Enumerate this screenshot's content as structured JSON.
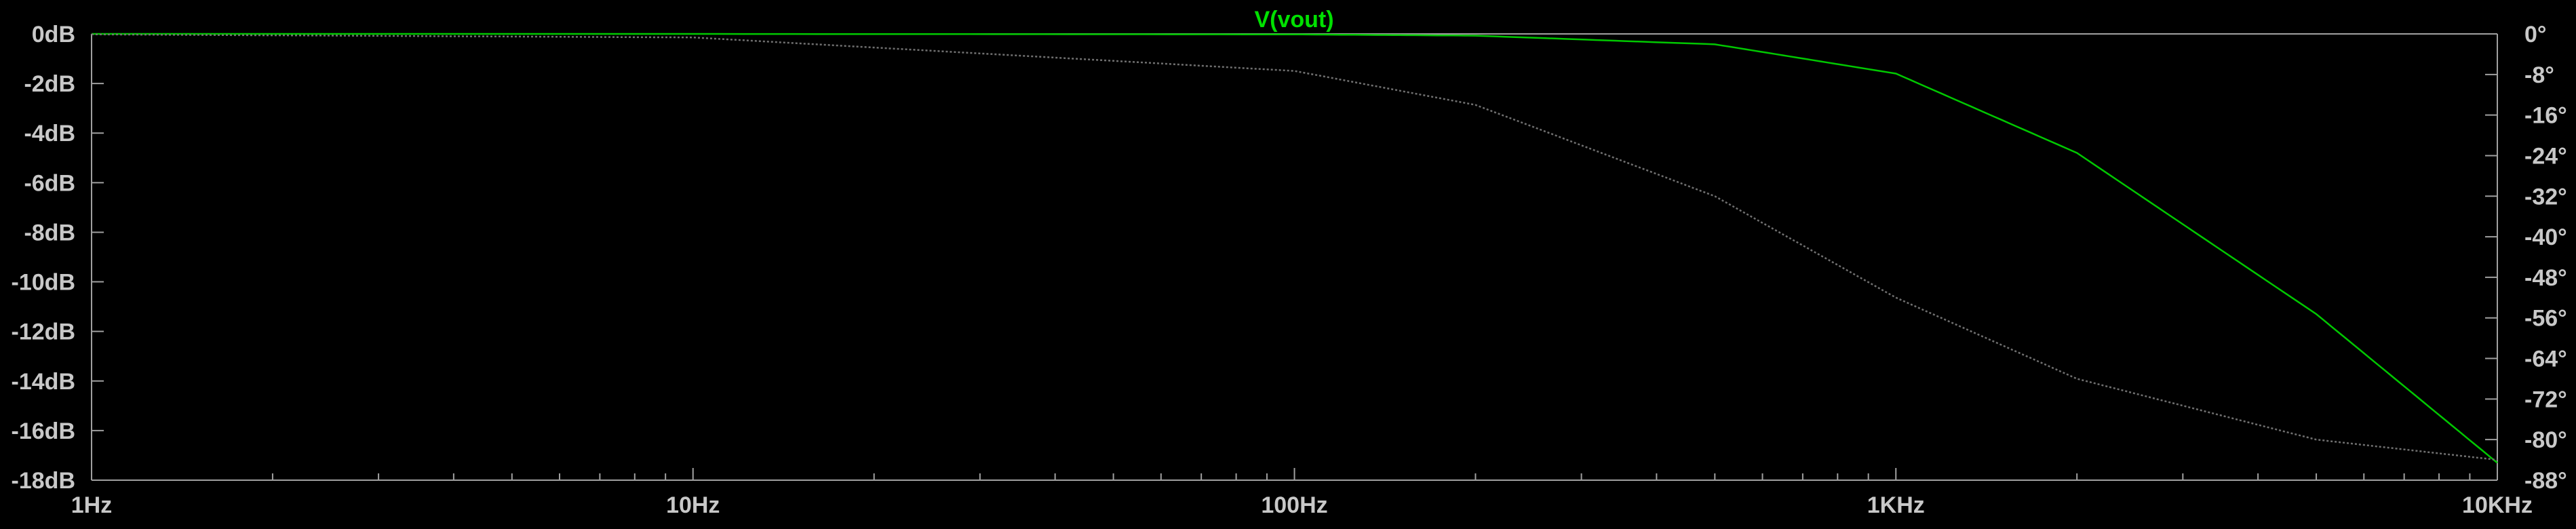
{
  "chart_data": {
    "type": "line",
    "title": "V(vout)",
    "x_scale": "log",
    "x_range_hz": [
      1,
      10000
    ],
    "x_ticks": [
      {
        "value": 1,
        "label": "1Hz"
      },
      {
        "value": 10,
        "label": "10Hz"
      },
      {
        "value": 100,
        "label": "100Hz"
      },
      {
        "value": 1000,
        "label": "1KHz"
      },
      {
        "value": 10000,
        "label": "10KHz"
      }
    ],
    "y_left_range_db": [
      -18,
      0
    ],
    "y_left_ticks": [
      {
        "value": 0,
        "label": "0dB"
      },
      {
        "value": -2,
        "label": "-2dB"
      },
      {
        "value": -4,
        "label": "-4dB"
      },
      {
        "value": -6,
        "label": "-6dB"
      },
      {
        "value": -8,
        "label": "-8dB"
      },
      {
        "value": -10,
        "label": "-10dB"
      },
      {
        "value": -12,
        "label": "-12dB"
      },
      {
        "value": -14,
        "label": "-14dB"
      },
      {
        "value": -16,
        "label": "-16dB"
      },
      {
        "value": -18,
        "label": "-18dB"
      }
    ],
    "y_right_range_deg": [
      -88,
      0
    ],
    "y_right_ticks": [
      {
        "value": 0,
        "label": "0°"
      },
      {
        "value": -8,
        "label": "-8°"
      },
      {
        "value": -16,
        "label": "-16°"
      },
      {
        "value": -24,
        "label": "-24°"
      },
      {
        "value": -32,
        "label": "-32°"
      },
      {
        "value": -40,
        "label": "-40°"
      },
      {
        "value": -48,
        "label": "-48°"
      },
      {
        "value": -56,
        "label": "-56°"
      },
      {
        "value": -64,
        "label": "-64°"
      },
      {
        "value": -72,
        "label": "-72°"
      },
      {
        "value": -80,
        "label": "-80°"
      },
      {
        "value": -88,
        "label": "-88°"
      }
    ],
    "grid": false,
    "series": [
      {
        "kind": "magnitude",
        "axis": "left",
        "color": "#00c800",
        "dash": "none",
        "x": [
          1,
          10,
          100,
          200,
          500,
          1000,
          2000,
          5000,
          10000
        ],
        "y": [
          0,
          0,
          -0.02,
          -0.07,
          -0.42,
          -1.6,
          -4.8,
          -11.3,
          -17.3
        ]
      },
      {
        "kind": "phase",
        "axis": "right",
        "color": "#707070",
        "dash": "dotted",
        "x": [
          1,
          10,
          100,
          200,
          500,
          1000,
          2000,
          5000,
          10000
        ],
        "y": [
          -0.1,
          -0.7,
          -7.3,
          -14,
          -32,
          -52,
          -68,
          -80,
          -84
        ]
      }
    ]
  },
  "colors": {
    "background": "#000000",
    "axis": "#a0a0a0",
    "label": "#c8c8c8",
    "title": "#00e000"
  }
}
